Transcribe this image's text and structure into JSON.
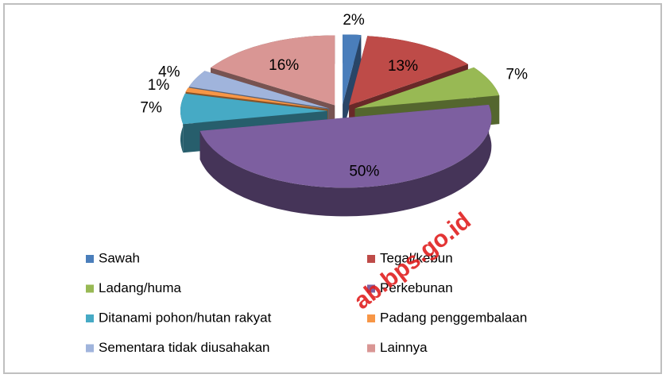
{
  "chart_data": {
    "type": "pie",
    "categories": [
      "Sawah",
      "Tegal/kebun",
      "Ladang/huma",
      "Perkebunan",
      "Ditanami pohon/hutan rakyat",
      "Padang penggembalaan",
      "Sementara tidak diusahakan",
      "Lainnya"
    ],
    "values": [
      2,
      13,
      7,
      50,
      7,
      1,
      4,
      16
    ],
    "value_labels": [
      "2%",
      "13%",
      "7%",
      "50%",
      "7%",
      "1%",
      "4%",
      "16%"
    ],
    "colors": [
      "#4a7ebb",
      "#be4b48",
      "#98b954",
      "#7d5fa0",
      "#46aac5",
      "#f79646",
      "#a0b4dc",
      "#d99694"
    ],
    "legend": "bottom",
    "watermark": "ab.bps.go.id"
  }
}
